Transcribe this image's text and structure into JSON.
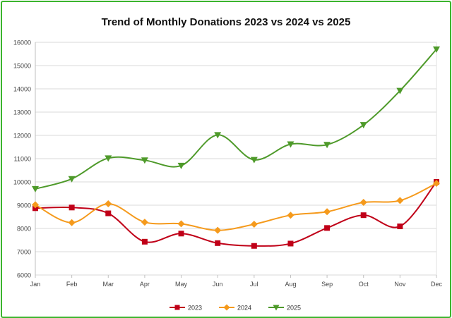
{
  "chart_data": {
    "type": "line",
    "title": "Trend of Monthly Donations 2023 vs 2024 vs 2025",
    "categories": [
      "Jan",
      "Feb",
      "Mar",
      "Apr",
      "May",
      "Jun",
      "Jul",
      "Aug",
      "Sep",
      "Oct",
      "Nov",
      "Dec"
    ],
    "ylim": [
      6000,
      16000
    ],
    "yticks": [
      6000,
      7000,
      8000,
      9000,
      10000,
      11000,
      12000,
      13000,
      14000,
      15000,
      16000
    ],
    "grid": true,
    "smooth": true,
    "legend": "bottom",
    "series": [
      {
        "name": "2023",
        "color": "#c00018",
        "marker": "square",
        "values": [
          8870,
          8900,
          8650,
          7430,
          7780,
          7370,
          7250,
          7350,
          8020,
          8570,
          8090,
          10000
        ]
      },
      {
        "name": "2024",
        "color": "#f59a1c",
        "marker": "diamond",
        "values": [
          9020,
          8250,
          9060,
          8270,
          8200,
          7920,
          8180,
          8570,
          8720,
          9120,
          9200,
          9940
        ]
      },
      {
        "name": "2025",
        "color": "#4e9a2a",
        "marker": "triangle-down",
        "values": [
          9700,
          10130,
          11020,
          10930,
          10700,
          12020,
          10950,
          11620,
          11600,
          12450,
          13920,
          15700
        ]
      }
    ]
  }
}
